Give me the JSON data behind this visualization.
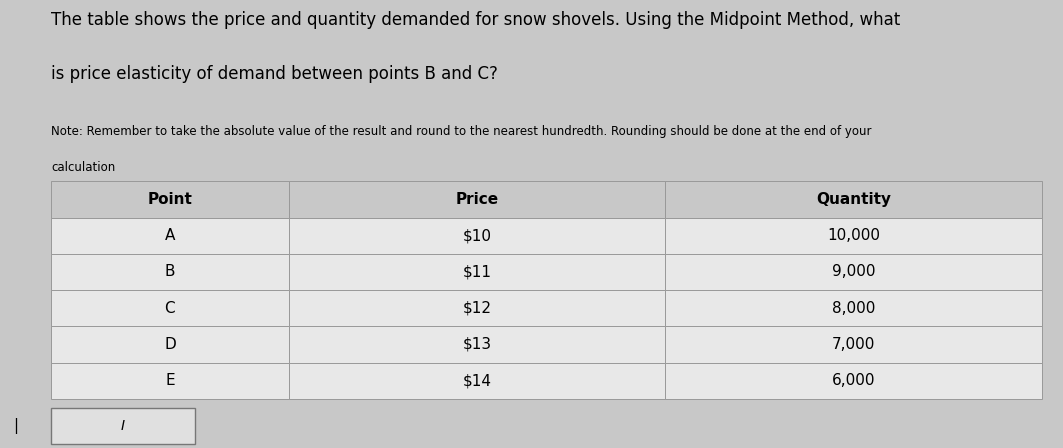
{
  "title_line1": "The table shows the price and quantity demanded for snow shovels. Using the Midpoint Method, what",
  "title_line2": "is price elasticity of demand between points B and C?",
  "note_line1": "Note: Remember to take the absolute value of the result and round to the nearest hundredth. Rounding should be done at the end of your",
  "note_line2": "calculation",
  "col_headers": [
    "Point",
    "Price",
    "Quantity"
  ],
  "rows": [
    [
      "A",
      "$10",
      "10,000"
    ],
    [
      "B",
      "$11",
      "9,000"
    ],
    [
      "C",
      "$12",
      "8,000"
    ],
    [
      "D",
      "$13",
      "7,000"
    ],
    [
      "E",
      "$14",
      "6,000"
    ]
  ],
  "bg_color": "#c8c8c8",
  "header_bg": "#c8c8c8",
  "cell_bg": "#e8e8e8",
  "text_color": "#000000",
  "border_color": "#999999",
  "input_box_text": "I",
  "fig_width": 10.63,
  "fig_height": 4.48,
  "dpi": 100,
  "title1_fontsize": 12,
  "title2_fontsize": 12,
  "note_fontsize": 8.5,
  "table_fontsize": 11
}
